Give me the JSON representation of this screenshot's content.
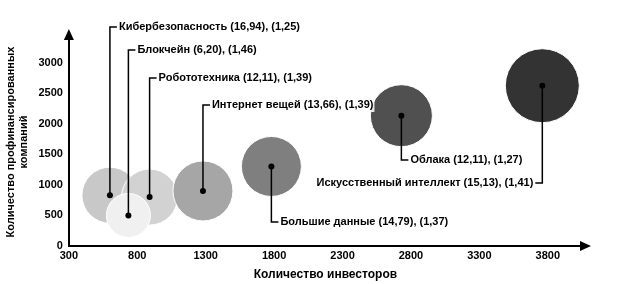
{
  "chart_data": {
    "type": "bubble",
    "x_label": "Количество инвесторов",
    "y_label": [
      "Количество профинансированных",
      "компаний"
    ],
    "x": [
      600,
      890,
      735,
      1280,
      1780,
      2730,
      3760
    ],
    "values": [
      830,
      800,
      500,
      900,
      1300,
      2130,
      2620
    ],
    "sizes": [
      28,
      28,
      22,
      30,
      30,
      31,
      37
    ],
    "colors": [
      "#c8c8c8",
      "#d2d2d2",
      "#f0f0f0",
      "#a6a6a6",
      "#7f7f7f",
      "#505050",
      "#333333"
    ],
    "annotations": [
      "Кибербезопасность (16,94), (1,25)",
      "Робототехника (12,11), (1,39)",
      "Блокчейн (6,20), (1,46)",
      "Интернет вещей (13,66), (1,39)",
      "Большие данные (14,79), (1,37)",
      "Облака (12,11), (1,27)",
      "Искусственный интеллект (15,13), (1,41)"
    ],
    "xlim": [
      300,
      4050
    ],
    "xticks": [
      300,
      800,
      1300,
      1800,
      2300,
      2800,
      3300,
      3800
    ],
    "ylim": [
      0,
      3400
    ],
    "yticks": [
      0,
      500,
      1000,
      1500,
      2000,
      2500,
      3000
    ],
    "grid": false
  }
}
